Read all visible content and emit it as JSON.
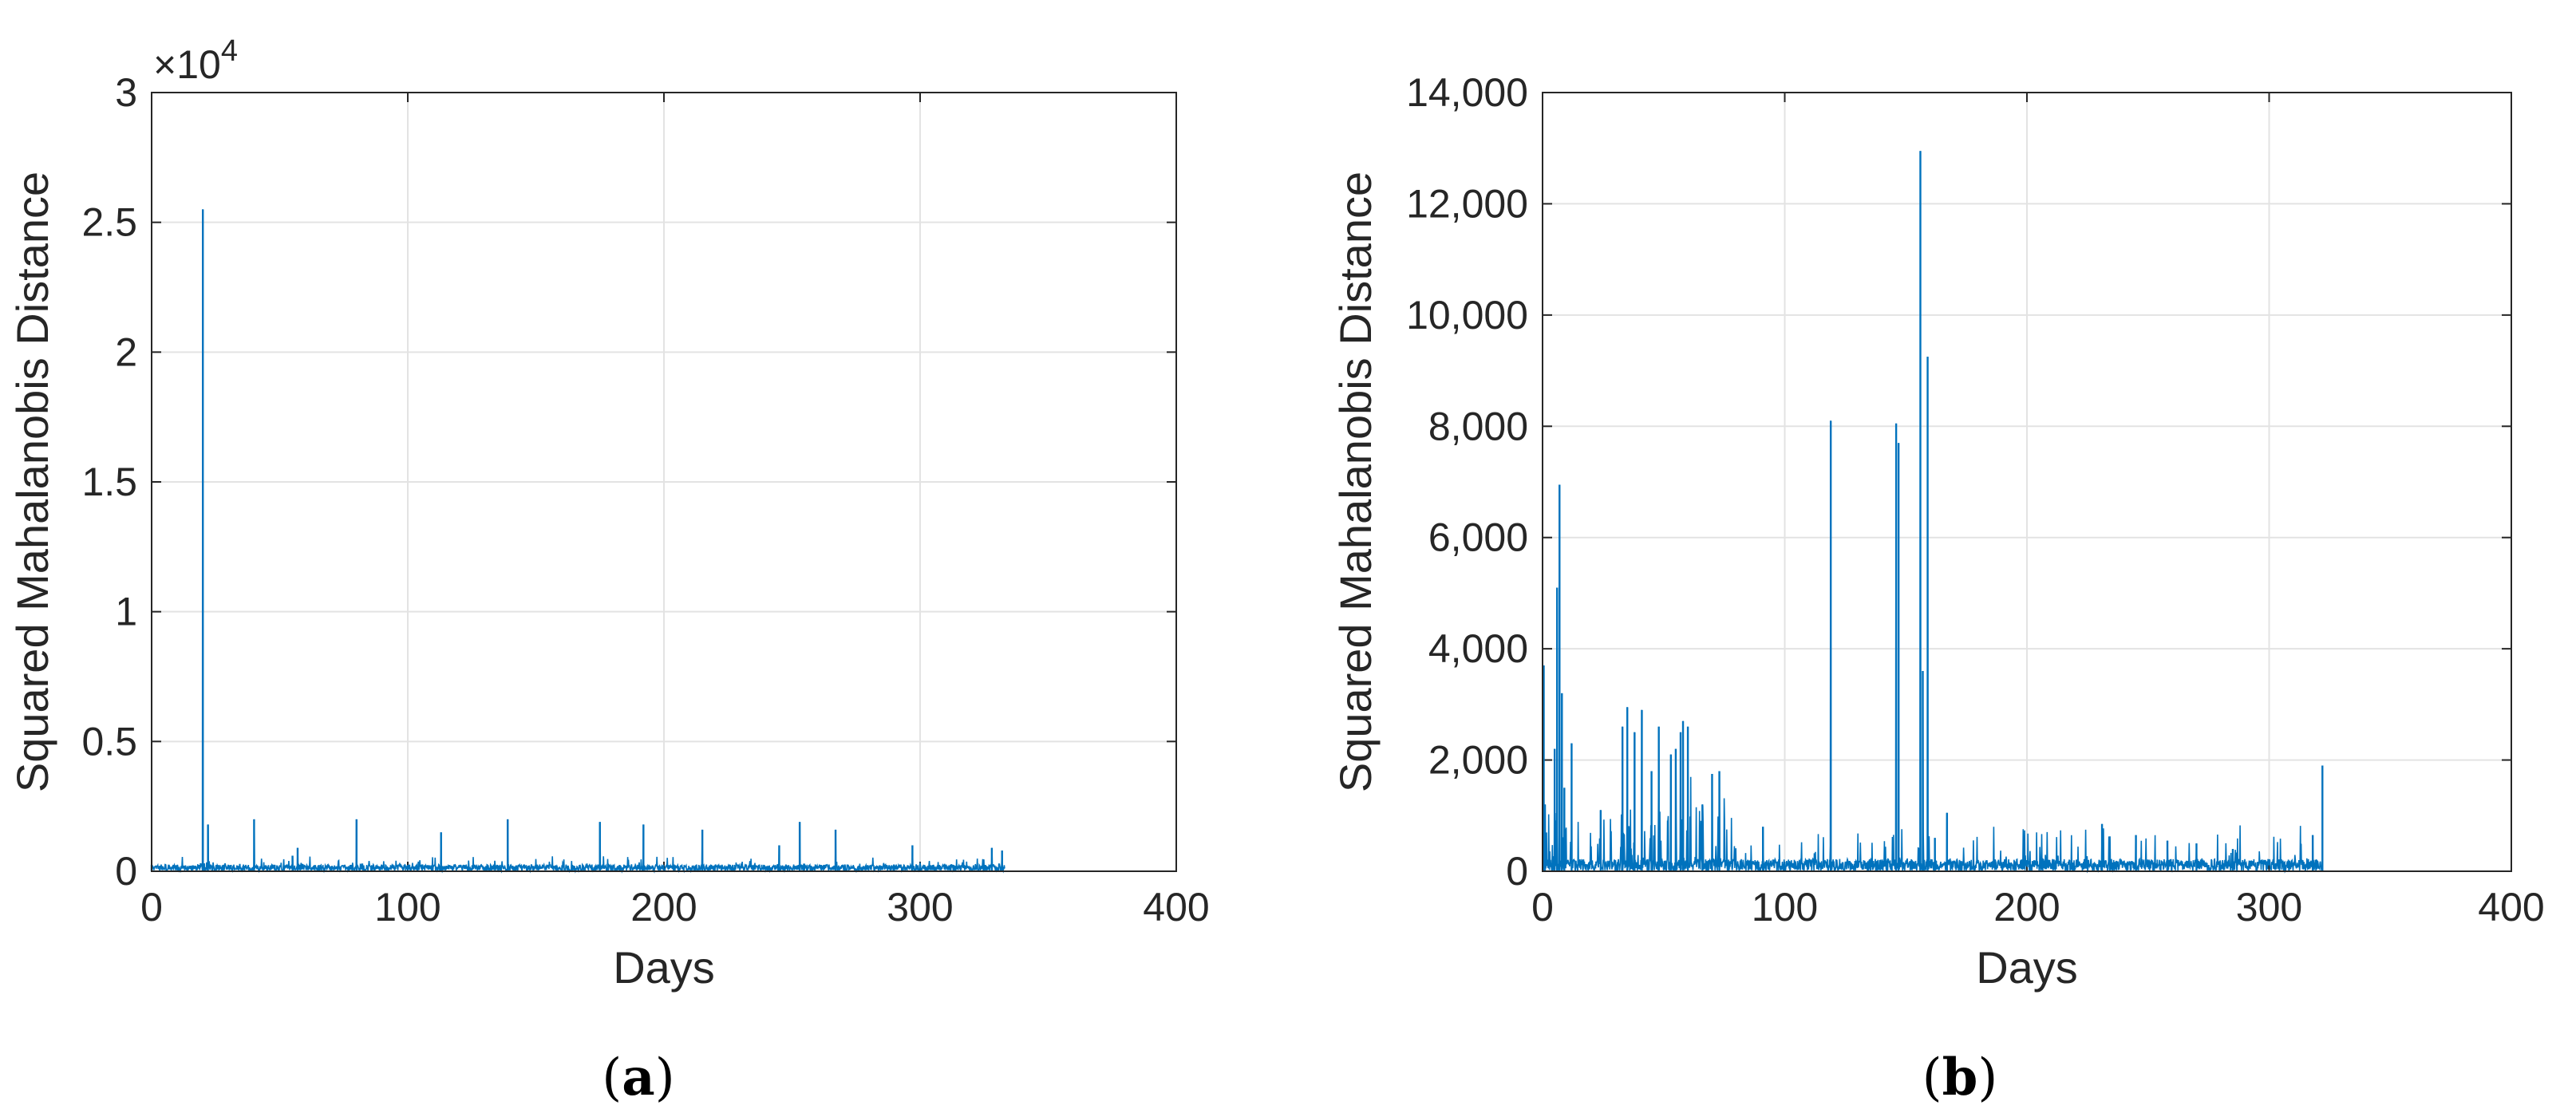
{
  "chart_data": [
    {
      "panel_label": "(a)",
      "type": "line",
      "xlabel": "Days",
      "ylabel": "Squared Mahalanobis Distance",
      "xlim": [
        0,
        400
      ],
      "ylim": [
        0,
        30000
      ],
      "x_ticks": [
        "0",
        "100",
        "200",
        "300",
        "400"
      ],
      "y_ticks": [
        "0",
        "0.5",
        "1",
        "1.5",
        "2",
        "2.5",
        "3"
      ],
      "y_exponent_label": "×10",
      "y_exponent_power": "4",
      "grid": true,
      "color": "#0072BD",
      "series": [
        {
          "x": [
            0,
            20,
            20.5,
            22,
            40,
            55,
            57,
            80,
            113,
            139,
            175,
            192,
            215,
            245,
            253,
            267,
            297,
            328,
            332
          ],
          "values": [
            250,
            25500,
            300,
            1800,
            2000,
            600,
            900,
            2000,
            1500,
            2000,
            1900,
            1800,
            1600,
            1000,
            1900,
            1600,
            1000,
            900,
            800
          ]
        }
      ],
      "data_end_x": 333
    },
    {
      "panel_label": "(b)",
      "type": "line",
      "xlabel": "Days",
      "ylabel": "Squared Mahalanobis Distance",
      "xlim": [
        0,
        400
      ],
      "ylim": [
        0,
        14000
      ],
      "x_ticks": [
        "0",
        "100",
        "200",
        "300",
        "400"
      ],
      "y_ticks": [
        "0",
        "2,000",
        "4,000",
        "6,000",
        "8,000",
        "10,000",
        "12,000",
        "14,000"
      ],
      "grid": true,
      "color": "#0072BD",
      "series": [
        {
          "x": [
            0.5,
            1,
            5,
            6,
            7,
            8,
            9,
            12,
            24,
            33,
            35,
            38,
            41,
            45,
            48,
            53,
            55,
            57,
            58,
            60,
            66,
            70,
            73,
            91,
            119,
            146,
            147,
            156,
            157,
            159,
            162,
            167,
            231,
            245,
            258,
            270,
            285,
            318,
            322
          ],
          "values": [
            3700,
            1200,
            2200,
            5100,
            6950,
            3200,
            1500,
            2300,
            1100,
            2600,
            2950,
            2500,
            2900,
            1800,
            2600,
            2100,
            2200,
            2500,
            2700,
            2600,
            1200,
            1750,
            1800,
            800,
            8100,
            8050,
            7700,
            12950,
            3600,
            9250,
            600,
            1050,
            850,
            650,
            550,
            500,
            400,
            650,
            1900
          ]
        }
      ],
      "data_end_x": 322
    }
  ]
}
